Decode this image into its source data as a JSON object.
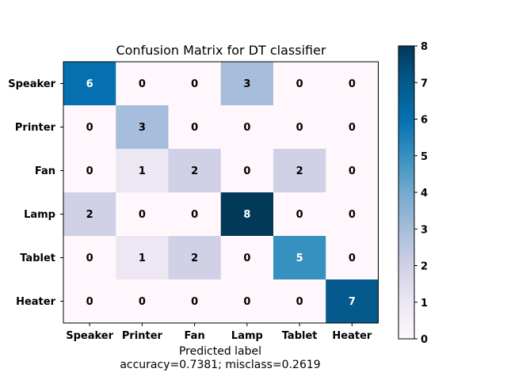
{
  "chart_data": {
    "type": "heatmap",
    "title": "Confusion Matrix for DT classifier",
    "xlabel": "Predicted label",
    "xlabel_sub": "accuracy=0.7381; misclass=0.2619",
    "ylabel": "",
    "row_labels": [
      "Speaker",
      "Printer",
      "Fan",
      "Lamp",
      "Tablet",
      "Heater"
    ],
    "col_labels": [
      "Speaker",
      "Printer",
      "Fan",
      "Lamp",
      "Tablet",
      "Heater"
    ],
    "matrix": [
      [
        6,
        0,
        0,
        3,
        0,
        0
      ],
      [
        0,
        3,
        0,
        0,
        0,
        0
      ],
      [
        0,
        1,
        2,
        0,
        2,
        0
      ],
      [
        2,
        0,
        0,
        8,
        0,
        0
      ],
      [
        0,
        1,
        2,
        0,
        5,
        0
      ],
      [
        0,
        0,
        0,
        0,
        0,
        7
      ]
    ],
    "colormap": "PuBu",
    "vmin": 0,
    "vmax": 8,
    "colorbar_ticks": [
      0,
      1,
      2,
      3,
      4,
      5,
      6,
      7,
      8
    ]
  }
}
